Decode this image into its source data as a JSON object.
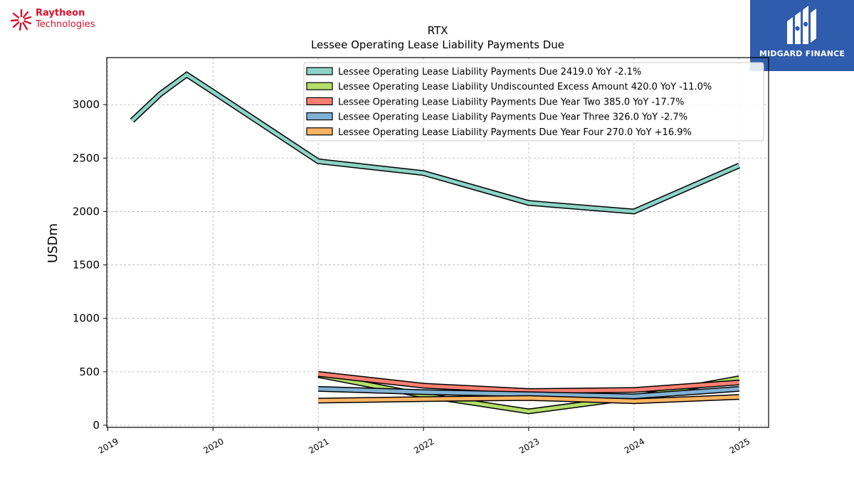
{
  "branding": {
    "left_logo_line1": "Raytheon",
    "left_logo_line2": "Technologies",
    "right_logo_text": "MIDGARD FINANCE",
    "left_logo_color": "#d3132d",
    "right_logo_bg": "#2f5cad"
  },
  "chart_data": {
    "type": "line",
    "title": "RTX",
    "subtitle": "Lessee Operating Lease Liability Payments Due",
    "xlabel": "",
    "ylabel": "USDm",
    "xlim": [
      2018.99,
      2025.28
    ],
    "ylim": [
      -20,
      3440
    ],
    "x_ticks": [
      "2019",
      "2020",
      "2021",
      "2022",
      "2023",
      "2024",
      "2025"
    ],
    "y_ticks": [
      "0",
      "500",
      "1000",
      "1500",
      "2000",
      "2500",
      "3000"
    ],
    "grid": true,
    "legend_position": "top-right",
    "series": [
      {
        "name": "Lessee Operating Lease Liability Payments Due",
        "legend": "Lessee Operating Lease Liability Payments Due  2419.0 YoY -2.1%",
        "color": "#8dd3c7",
        "x": [
          2019.23,
          2019.5,
          2019.75,
          2020.0,
          2021.0,
          2022.0,
          2023.0,
          2024.0,
          2025.0
        ],
        "y": [
          2850,
          3100,
          3280,
          3120,
          2470,
          2360,
          2080,
          2000,
          2430
        ]
      },
      {
        "name": "Lessee Operating Lease Liability Undiscounted Excess Amount",
        "legend": "Lessee Operating Lease Liability Undiscounted Excess Amount  420.0 YoY -11.0%",
        "color": "#b3de69",
        "x": [
          2021.0,
          2022.0,
          2023.0,
          2024.0,
          2025.0
        ],
        "y": [
          470,
          280,
          130,
          260,
          440
        ]
      },
      {
        "name": "Lessee Operating Lease Liability Payments Due Year Two",
        "legend": "Lessee Operating Lease Liability Payments Due Year Two  385.0 YoY -17.7%",
        "color": "#fb8072",
        "x": [
          2021.0,
          2022.0,
          2023.0,
          2024.0,
          2025.0
        ],
        "y": [
          480,
          370,
          320,
          330,
          400
        ]
      },
      {
        "name": "Lessee Operating Lease Liability Payments Due Year Three",
        "legend": "Lessee Operating Lease Liability Payments Due Year Three  326.0 YoY -2.7%",
        "color": "#80b1d3",
        "x": [
          2021.0,
          2022.0,
          2023.0,
          2024.0,
          2025.0
        ],
        "y": [
          340,
          310,
          290,
          270,
          340
        ]
      },
      {
        "name": "Lessee Operating Lease Liability Payments Due Year Four",
        "legend": "Lessee Operating Lease Liability Payments Due Year Four  270.0 YoY +16.9%",
        "color": "#fdb462",
        "x": [
          2021.0,
          2022.0,
          2023.0,
          2024.0,
          2025.0
        ],
        "y": [
          230,
          245,
          255,
          225,
          265
        ]
      }
    ]
  }
}
